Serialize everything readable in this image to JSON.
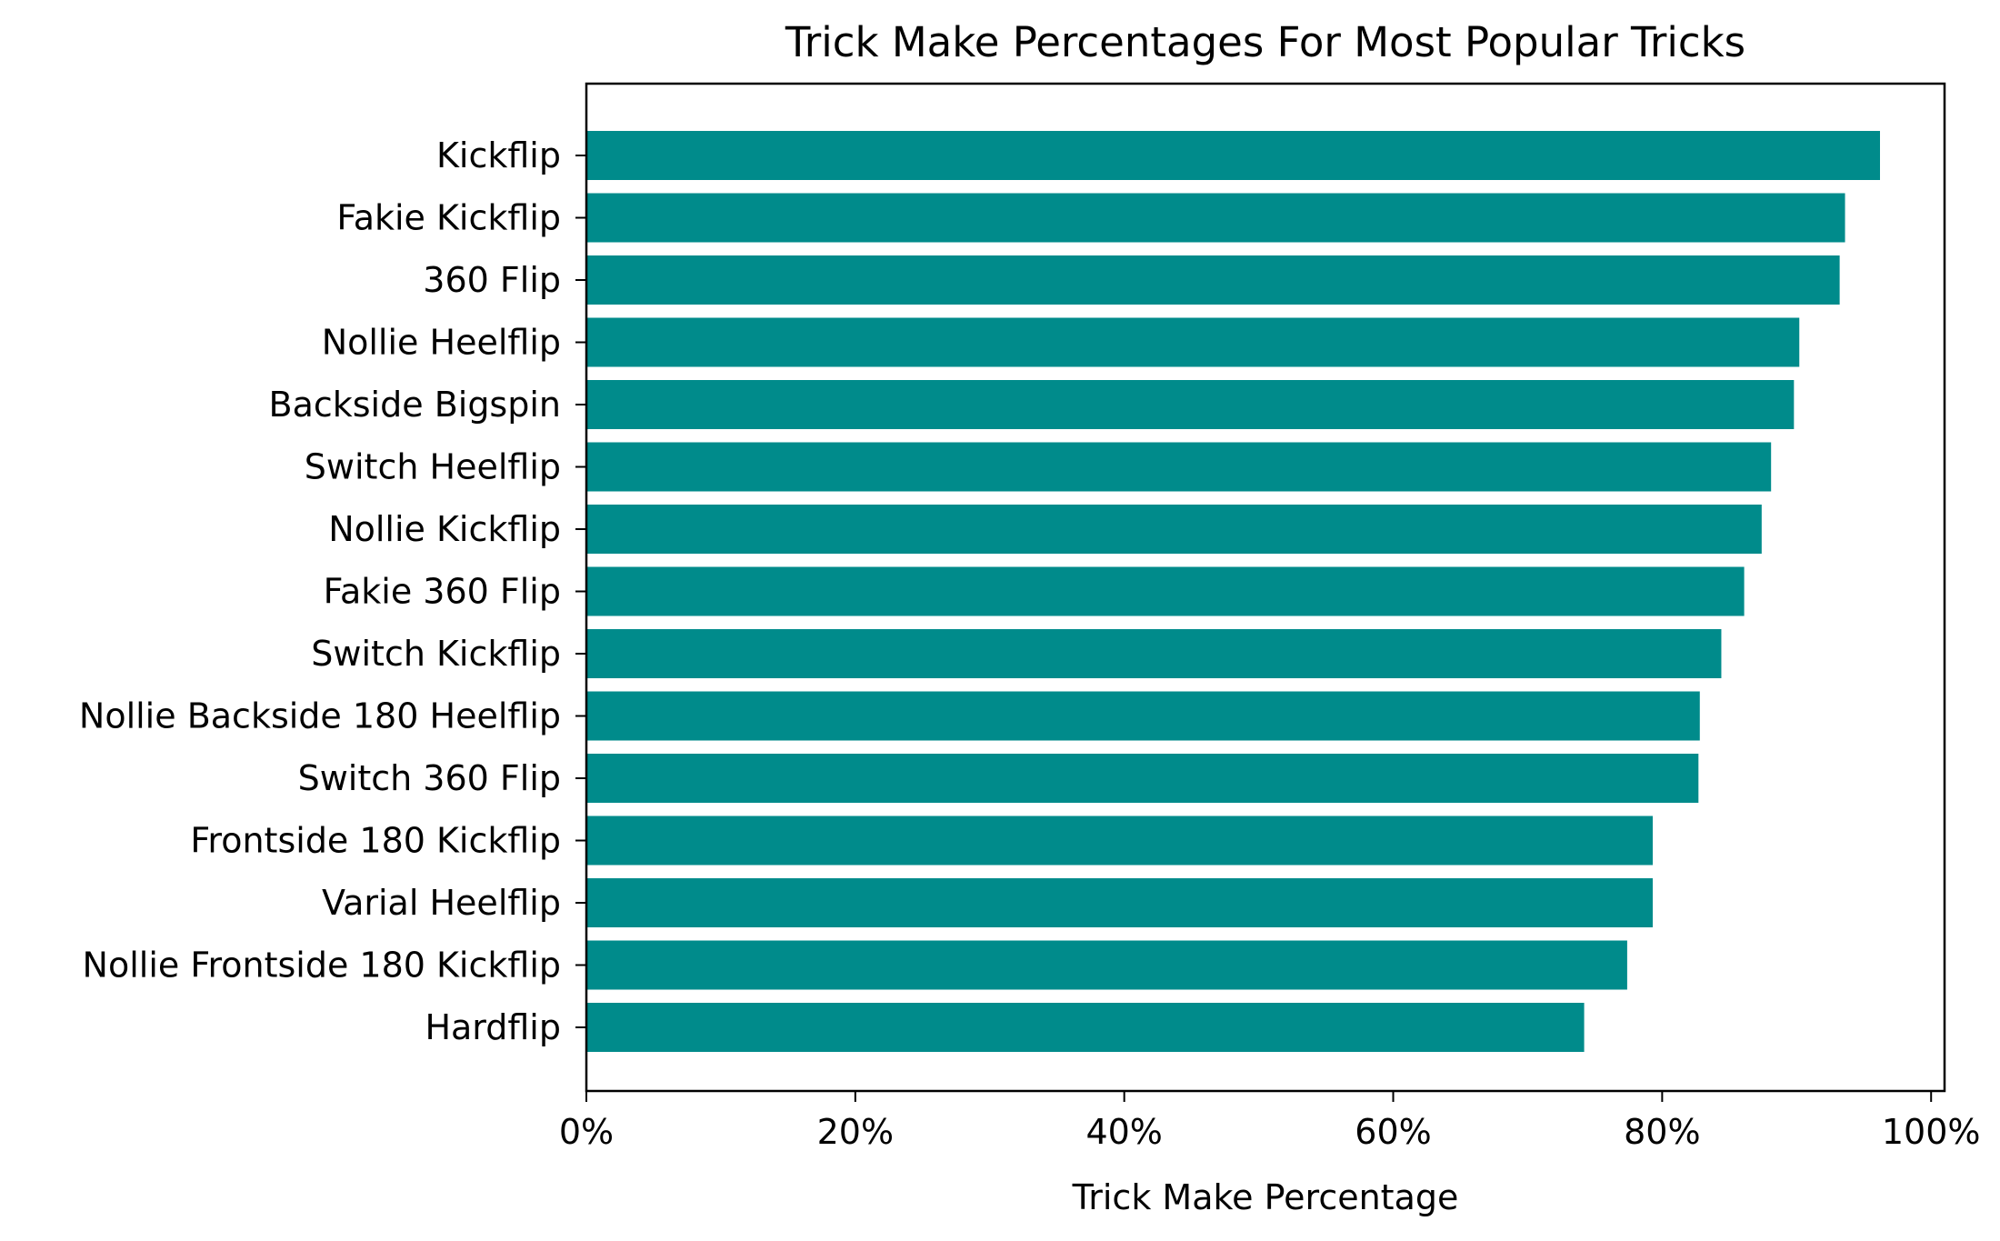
{
  "chart_data": {
    "type": "bar",
    "orientation": "horizontal",
    "title": "Trick Make Percentages For Most Popular Tricks",
    "xlabel": "Trick Make Percentage",
    "ylabel": "",
    "xlim": [
      0,
      1.01
    ],
    "xticks": [
      0,
      0.2,
      0.4,
      0.6,
      0.8,
      1.0
    ],
    "xtick_labels": [
      "0%",
      "20%",
      "40%",
      "60%",
      "80%",
      "100%"
    ],
    "grid": false,
    "bar_color": "#008b8b",
    "categories": [
      "Kickflip",
      "Fakie Kickflip",
      "360 Flip",
      "Nollie Heelflip",
      "Backside Bigspin",
      "Switch Heelflip",
      "Nollie Kickflip",
      "Fakie 360 Flip",
      "Switch Kickflip",
      "Nollie Backside 180 Heelflip",
      "Switch 360 Flip",
      "Frontside 180 Kickflip",
      "Varial Heelflip",
      "Nollie Frontside 180 Kickflip",
      "Hardflip"
    ],
    "values": [
      0.962,
      0.936,
      0.932,
      0.902,
      0.898,
      0.881,
      0.874,
      0.861,
      0.844,
      0.828,
      0.827,
      0.793,
      0.793,
      0.774,
      0.742
    ]
  }
}
